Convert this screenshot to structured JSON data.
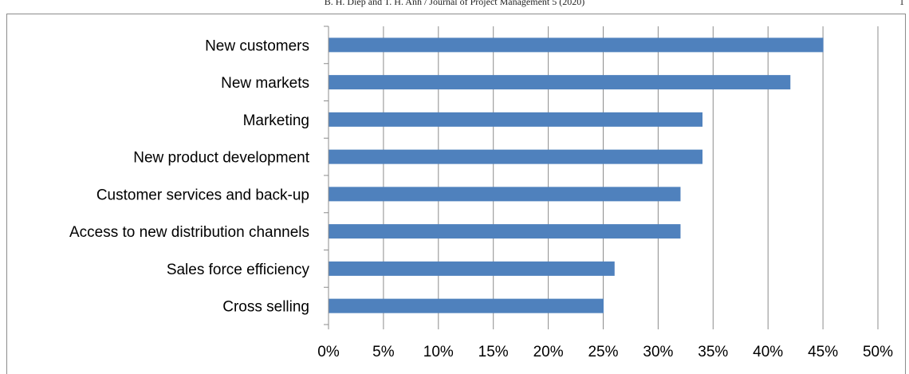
{
  "page_header": {
    "citation": "B. H. Diep and T. H. Anh / Journal of Project Management 5 (2020)",
    "page_number": "1"
  },
  "chart_data": {
    "type": "bar",
    "orientation": "horizontal",
    "title": "",
    "xlabel": "",
    "ylabel": "",
    "categories": [
      "New customers",
      "New markets",
      "Marketing",
      "New product development",
      "Customer services and back-up",
      "Access to new distribution channels",
      "Sales force efficiency",
      "Cross selling"
    ],
    "values": [
      0.45,
      0.42,
      0.34,
      0.34,
      0.32,
      0.32,
      0.26,
      0.25
    ],
    "xlim": [
      0,
      0.5
    ],
    "x_ticks": [
      "0%",
      "5%",
      "10%",
      "15%",
      "20%",
      "25%",
      "30%",
      "35%",
      "40%",
      "45%",
      "50%"
    ],
    "grid": "vertical",
    "legend": "none",
    "bar_color": "#4f81bd",
    "grid_color": "#8c8c8c"
  }
}
